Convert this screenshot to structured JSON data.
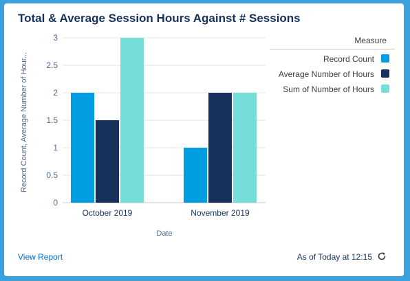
{
  "card": {
    "title": "Total & Average Session Hours Against # Sessions",
    "view_report_label": "View Report",
    "as_of_label": "As of Today at 12:15",
    "refresh_icon": "refresh-icon"
  },
  "legend": {
    "title": "Measure",
    "items": [
      {
        "label": "Record Count",
        "color": "#009ee0"
      },
      {
        "label": "Average Number of Hours",
        "color": "#16325c"
      },
      {
        "label": "Sum of Number of Hours",
        "color": "#76ded9"
      }
    ]
  },
  "chart_data": {
    "type": "bar",
    "title": "Total & Average Session Hours Against # Sessions",
    "xlabel": "Date",
    "ylabel": "Record Count, Average Number of Hour...",
    "categories": [
      "October 2019",
      "November 2019"
    ],
    "series": [
      {
        "name": "Record Count",
        "color": "#009ee0",
        "values": [
          2,
          1
        ]
      },
      {
        "name": "Average Number of Hours",
        "color": "#16325c",
        "values": [
          1.5,
          2
        ]
      },
      {
        "name": "Sum of Number of Hours",
        "color": "#76ded9",
        "values": [
          3,
          2
        ]
      }
    ],
    "ylim": [
      0,
      3
    ],
    "yticks": [
      "0",
      "0.5",
      "1",
      "1.5",
      "2",
      "2.5",
      "3"
    ],
    "grid": true,
    "legend_position": "right"
  }
}
